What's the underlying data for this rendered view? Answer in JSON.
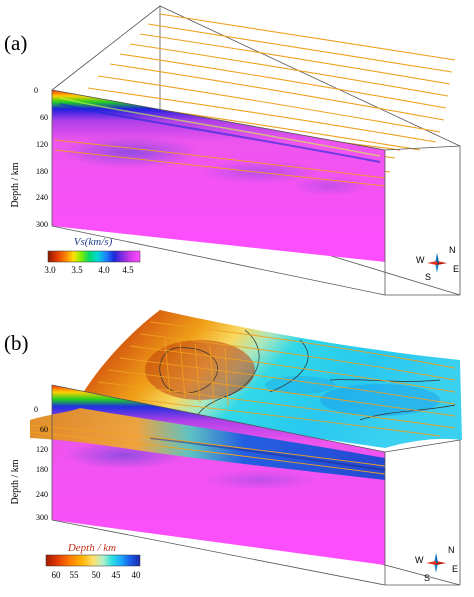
{
  "figure": {
    "panel_a": {
      "label": "(a)",
      "depth_axis_title": "Depth / km",
      "depth_ticks": [
        "0",
        "60",
        "120",
        "180",
        "240",
        "300"
      ],
      "colorbar": {
        "title": "Vs(km/s)",
        "title_color": "#1f3d8a",
        "ticks": [
          "3.0",
          "3.5",
          "4.0",
          "4.5"
        ],
        "colors": [
          "#8b1a00",
          "#e63a00",
          "#ff8c00",
          "#ffe000",
          "#7ff000",
          "#00d86c",
          "#00d8d8",
          "#1e78ff",
          "#1a2ad8",
          "#7a2be0",
          "#d23be8",
          "#ff4dff"
        ]
      },
      "compass": {
        "north": "N",
        "south": "S",
        "east": "E",
        "west": "W"
      }
    },
    "panel_b": {
      "label": "(b)",
      "depth_axis_title": "Depth / km",
      "depth_ticks": [
        "0",
        "60",
        "120",
        "180",
        "240",
        "300"
      ],
      "colorbar": {
        "title": "Depth / km",
        "title_color": "#c0301a",
        "ticks": [
          "60",
          "55",
          "50",
          "45",
          "40"
        ],
        "colors": [
          "#a41a00",
          "#e23a00",
          "#ff7a00",
          "#ffb400",
          "#ffe06a",
          "#b8f0c8",
          "#2ee0e0",
          "#1aa8ff",
          "#1a5ae8",
          "#1a2aa8"
        ]
      },
      "compass": {
        "north": "N",
        "south": "S",
        "east": "E",
        "west": "W"
      }
    },
    "colors": {
      "profile_lines": "#f0a020",
      "slice_magenta": "#ee55ee",
      "slice_purple": "#a45ae8",
      "box_line": "#555555"
    }
  }
}
